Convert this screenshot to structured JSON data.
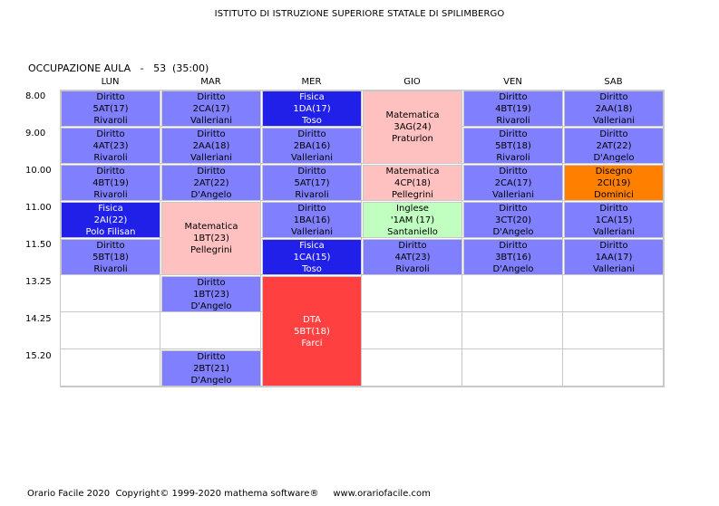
{
  "header": {
    "school": "ISTITUTO DI ISTRUZIONE SUPERIORE STATALE DI SPILIMBERGO",
    "room_label": "OCCUPAZIONE AULA   -   53  (35:00)"
  },
  "days": [
    "LUN",
    "MAR",
    "MER",
    "GIO",
    "VEN",
    "SAB"
  ],
  "time_labels": [
    "8.00",
    "9.00",
    "10.00",
    "11.00",
    "11.50",
    "13.25",
    "14.25",
    "15.20"
  ],
  "colors": {
    "diritto": "#8080ff",
    "fisica": "#2020e8",
    "matematica": "#ffc0c0",
    "disegno": "#ff8000",
    "inglese": "#c0ffc0",
    "dta": "#ff4040",
    "text_light": "#ffffff",
    "text_dark": "#000000",
    "grid": "#c8c8c8"
  },
  "lessons": [
    {
      "day": 0,
      "start": 0,
      "span": 1,
      "subject": "Diritto",
      "class": "5AT(17)",
      "teacher": "Rivaroli",
      "color": "diritto"
    },
    {
      "day": 0,
      "start": 1,
      "span": 1,
      "subject": "Diritto",
      "class": "4AT(23)",
      "teacher": "Rivaroli",
      "color": "diritto"
    },
    {
      "day": 0,
      "start": 2,
      "span": 1,
      "subject": "Diritto",
      "class": "4BT(19)",
      "teacher": "Rivaroli",
      "color": "diritto"
    },
    {
      "day": 0,
      "start": 3,
      "span": 1,
      "subject": "Fisica",
      "class": "2AI(22)",
      "teacher": "Polo Filisan",
      "color": "fisica"
    },
    {
      "day": 0,
      "start": 4,
      "span": 1,
      "subject": "Diritto",
      "class": "5BT(18)",
      "teacher": "Rivaroli",
      "color": "diritto"
    },
    {
      "day": 1,
      "start": 0,
      "span": 1,
      "subject": "Diritto",
      "class": "2CA(17)",
      "teacher": "Valleriani",
      "color": "diritto"
    },
    {
      "day": 1,
      "start": 1,
      "span": 1,
      "subject": "Diritto",
      "class": "2AA(18)",
      "teacher": "Valleriani",
      "color": "diritto"
    },
    {
      "day": 1,
      "start": 2,
      "span": 1,
      "subject": "Diritto",
      "class": "2AT(22)",
      "teacher": "D'Angelo",
      "color": "diritto"
    },
    {
      "day": 1,
      "start": 3,
      "span": 2,
      "subject": "Matematica",
      "class": "1BT(23)",
      "teacher": "Pellegrini",
      "color": "matematica"
    },
    {
      "day": 1,
      "start": 5,
      "span": 1,
      "subject": "Diritto",
      "class": "1BT(23)",
      "teacher": "D'Angelo",
      "color": "diritto"
    },
    {
      "day": 1,
      "start": 7,
      "span": 1,
      "subject": "Diritto",
      "class": "2BT(21)",
      "teacher": "D'Angelo",
      "color": "diritto"
    },
    {
      "day": 2,
      "start": 0,
      "span": 1,
      "subject": "Fisica",
      "class": "1DA(17)",
      "teacher": "Toso",
      "color": "fisica"
    },
    {
      "day": 2,
      "start": 1,
      "span": 1,
      "subject": "Diritto",
      "class": "2BA(16)",
      "teacher": "Valleriani",
      "color": "diritto"
    },
    {
      "day": 2,
      "start": 2,
      "span": 1,
      "subject": "Diritto",
      "class": "5AT(17)",
      "teacher": "Rivaroli",
      "color": "diritto"
    },
    {
      "day": 2,
      "start": 3,
      "span": 1,
      "subject": "Diritto",
      "class": "1BA(16)",
      "teacher": "Valleriani",
      "color": "diritto"
    },
    {
      "day": 2,
      "start": 4,
      "span": 1,
      "subject": "Fisica",
      "class": "1CA(15)",
      "teacher": "Toso",
      "color": "fisica"
    },
    {
      "day": 2,
      "start": 5,
      "span": 3,
      "subject": "DTA",
      "class": "5BT(18)",
      "teacher": "Farci",
      "color": "dta"
    },
    {
      "day": 3,
      "start": 0,
      "span": 2,
      "subject": "Matematica",
      "class": "3AG(24)",
      "teacher": "Praturlon",
      "color": "matematica"
    },
    {
      "day": 3,
      "start": 2,
      "span": 1,
      "subject": "Matematica",
      "class": "4CP(18)",
      "teacher": "Pellegrini",
      "color": "matematica"
    },
    {
      "day": 3,
      "start": 3,
      "span": 1,
      "subject": "Inglese",
      "class": "'1AM (17)",
      "teacher": "Santaniello",
      "color": "inglese"
    },
    {
      "day": 3,
      "start": 4,
      "span": 1,
      "subject": "Diritto",
      "class": "4AT(23)",
      "teacher": "Rivaroli",
      "color": "diritto"
    },
    {
      "day": 4,
      "start": 0,
      "span": 1,
      "subject": "Diritto",
      "class": "4BT(19)",
      "teacher": "Rivaroli",
      "color": "diritto"
    },
    {
      "day": 4,
      "start": 1,
      "span": 1,
      "subject": "Diritto",
      "class": "5BT(18)",
      "teacher": "Rivaroli",
      "color": "diritto"
    },
    {
      "day": 4,
      "start": 2,
      "span": 1,
      "subject": "Diritto",
      "class": "2CA(17)",
      "teacher": "Valleriani",
      "color": "diritto"
    },
    {
      "day": 4,
      "start": 3,
      "span": 1,
      "subject": "Diritto",
      "class": "3CT(20)",
      "teacher": "D'Angelo",
      "color": "diritto"
    },
    {
      "day": 4,
      "start": 4,
      "span": 1,
      "subject": "Diritto",
      "class": "3BT(16)",
      "teacher": "D'Angelo",
      "color": "diritto"
    },
    {
      "day": 5,
      "start": 0,
      "span": 1,
      "subject": "Diritto",
      "class": "2AA(18)",
      "teacher": "Valleriani",
      "color": "diritto"
    },
    {
      "day": 5,
      "start": 1,
      "span": 1,
      "subject": "Diritto",
      "class": "2AT(22)",
      "teacher": "D'Angelo",
      "color": "diritto"
    },
    {
      "day": 5,
      "start": 2,
      "span": 1,
      "subject": "Disegno",
      "class": "2CI(19)",
      "teacher": "Dominici",
      "color": "disegno"
    },
    {
      "day": 5,
      "start": 3,
      "span": 1,
      "subject": "Diritto",
      "class": "1CA(15)",
      "teacher": "Valleriani",
      "color": "diritto"
    },
    {
      "day": 5,
      "start": 4,
      "span": 1,
      "subject": "Diritto",
      "class": "1AA(17)",
      "teacher": "Valleriani",
      "color": "diritto"
    }
  ],
  "footer": {
    "text": "Orario Facile 2020  Copyright© 1999-2020 mathema software®     www.orariofacile.com"
  }
}
